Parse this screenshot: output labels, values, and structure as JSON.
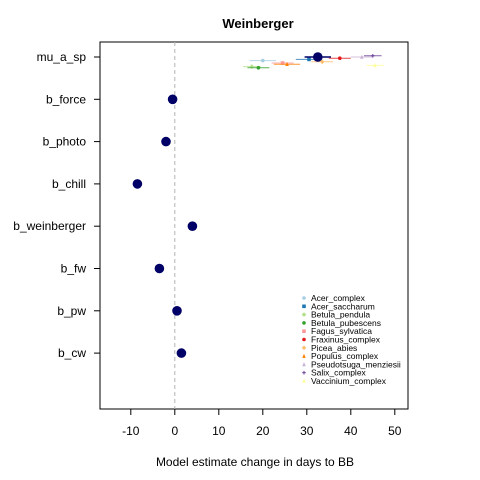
{
  "chart_data": {
    "type": "scatter",
    "title": "Weinberger",
    "xlabel": "Model estimate change in days to BB",
    "ylabel": "",
    "xlim": [
      -17,
      53
    ],
    "xticks": [
      -10,
      0,
      10,
      20,
      30,
      40,
      50
    ],
    "xtick_labels": [
      "-10",
      "0",
      "10",
      "20",
      "30",
      "40",
      "50"
    ],
    "reference_line_x": 0,
    "reference_line_style": "dashed",
    "grid": false,
    "legend_position": "bottom-right",
    "colors": {
      "main_point": "#000066",
      "reference_line": "#b3b3b3",
      "axis": "#000000"
    },
    "main": {
      "parameters": [
        "mu_a_sp",
        "b_force",
        "b_photo",
        "b_chill",
        "b_weinberger",
        "b_fw",
        "b_pw",
        "b_cw"
      ],
      "estimates": [
        32.5,
        -0.5,
        -2.0,
        -8.5,
        4.0,
        -3.5,
        0.5,
        1.5
      ],
      "lower": [
        29.5,
        -1.2,
        -2.6,
        -9.1,
        3.4,
        -4.1,
        -0.1,
        0.9
      ],
      "upper": [
        35.5,
        0.2,
        -1.4,
        -7.9,
        4.6,
        -2.9,
        1.1,
        2.1
      ]
    },
    "series": [
      {
        "name": "Acer_complex",
        "color": "#a6cee3",
        "marker": "circle",
        "value": 20.0,
        "lower": 17.0,
        "upper": 23.0
      },
      {
        "name": "Acer_saccharum",
        "color": "#1f78b4",
        "marker": "square",
        "value": 30.5,
        "lower": 27.5,
        "upper": 33.5
      },
      {
        "name": "Betula_pendula",
        "color": "#b2df8a",
        "marker": "diamond",
        "value": 17.5,
        "lower": 15.5,
        "upper": 19.5
      },
      {
        "name": "Betula_pubescens",
        "color": "#33a02c",
        "marker": "circle",
        "value": 19.0,
        "lower": 16.5,
        "upper": 21.5
      },
      {
        "name": "Fagus_sylvatica",
        "color": "#fb9a99",
        "marker": "square",
        "value": 24.5,
        "lower": 22.0,
        "upper": 27.0
      },
      {
        "name": "Fraxinus_complex",
        "color": "#e31a1c",
        "marker": "circle",
        "value": 37.5,
        "lower": 35.0,
        "upper": 40.0
      },
      {
        "name": "Picea_abies",
        "color": "#fdbf6f",
        "marker": "diamond",
        "value": 33.5,
        "lower": 31.0,
        "upper": 36.0
      },
      {
        "name": "Populus_complex",
        "color": "#ff7f00",
        "marker": "triangle",
        "value": 25.5,
        "lower": 22.5,
        "upper": 28.5
      },
      {
        "name": "Pseudotsuga_menziesii",
        "color": "#cab2d6",
        "marker": "triangle",
        "value": 42.5,
        "lower": 40.0,
        "upper": 45.0
      },
      {
        "name": "Salix_complex",
        "color": "#6a3d9a",
        "marker": "plus",
        "value": 45.0,
        "lower": 43.0,
        "upper": 47.0
      },
      {
        "name": "Vaccinium_complex",
        "color": "#ffff99",
        "marker": "triangle",
        "value": 45.5,
        "lower": 43.5,
        "upper": 47.5
      }
    ]
  }
}
